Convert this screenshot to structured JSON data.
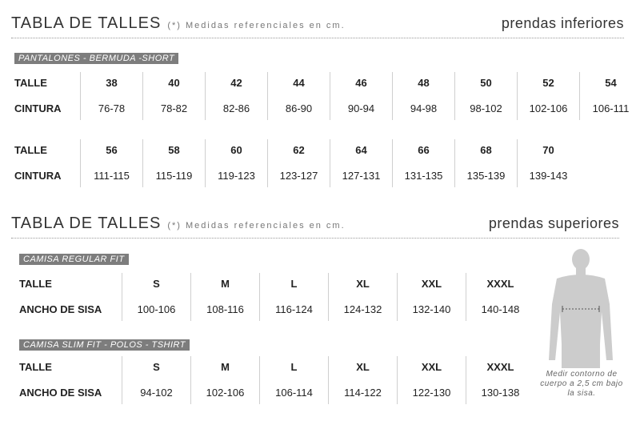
{
  "section_inferiores": {
    "title": "TABLA DE TALLES",
    "note": "(*) Medidas referenciales en cm.",
    "category": "prendas inferiores",
    "tag": "PANTALONES - BERMUDA -SHORT",
    "row_label_talle": "TALLE",
    "row_label_cintura": "CINTURA",
    "block1": [
      {
        "talle": "38",
        "cintura": "76-78"
      },
      {
        "talle": "40",
        "cintura": "78-82"
      },
      {
        "talle": "42",
        "cintura": "82-86"
      },
      {
        "talle": "44",
        "cintura": "86-90"
      },
      {
        "talle": "46",
        "cintura": "90-94"
      },
      {
        "talle": "48",
        "cintura": "94-98"
      },
      {
        "talle": "50",
        "cintura": "98-102"
      },
      {
        "talle": "52",
        "cintura": "102-106"
      },
      {
        "talle": "54",
        "cintura": "106-111"
      }
    ],
    "block2": [
      {
        "talle": "56",
        "cintura": "111-115"
      },
      {
        "talle": "58",
        "cintura": "115-119"
      },
      {
        "talle": "60",
        "cintura": "119-123"
      },
      {
        "talle": "62",
        "cintura": "123-127"
      },
      {
        "talle": "64",
        "cintura": "127-131"
      },
      {
        "talle": "66",
        "cintura": "131-135"
      },
      {
        "talle": "68",
        "cintura": "135-139"
      },
      {
        "talle": "70",
        "cintura": "139-143"
      }
    ]
  },
  "section_superiores": {
    "title": "TABLA DE TALLES",
    "note": "(*) Medidas referenciales en cm.",
    "category": "prendas superiores",
    "row_label_talle": "TALLE",
    "row_label_sisa": "ANCHO DE SISA",
    "regular": {
      "tag": "CAMISA REGULAR FIT",
      "sizes": [
        {
          "talle": "S",
          "sisa": "100-106"
        },
        {
          "talle": "M",
          "sisa": "108-116"
        },
        {
          "talle": "L",
          "sisa": "116-124"
        },
        {
          "talle": "XL",
          "sisa": "124-132"
        },
        {
          "talle": "XXL",
          "sisa": "132-140"
        },
        {
          "talle": "XXXL",
          "sisa": "140-148"
        }
      ]
    },
    "slim": {
      "tag": "CAMISA SLIM FIT - POLOS - TSHIRT",
      "sizes": [
        {
          "talle": "S",
          "sisa": "94-102"
        },
        {
          "talle": "M",
          "sisa": "102-106"
        },
        {
          "talle": "L",
          "sisa": "106-114"
        },
        {
          "talle": "XL",
          "sisa": "114-122"
        },
        {
          "talle": "XXL",
          "sisa": "122-130"
        },
        {
          "talle": "XXXL",
          "sisa": "130-138"
        }
      ]
    },
    "caption": "Medir contorno de cuerpo a 2,5 cm bajo la sisa."
  },
  "colors": {
    "tag_bg": "#7d7d7d",
    "silhouette": "#cccccc",
    "divider": "#cfcfcf"
  }
}
